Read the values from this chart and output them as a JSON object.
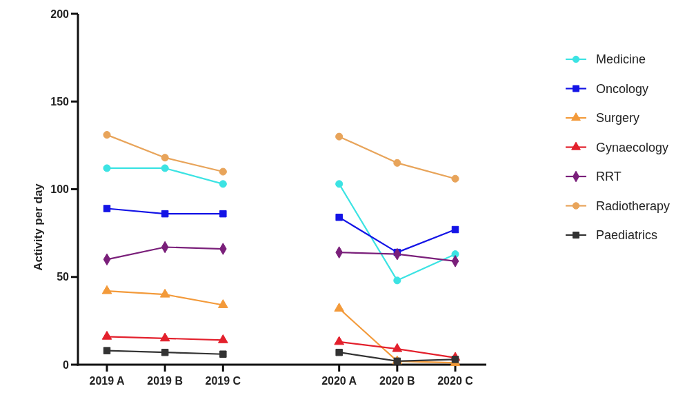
{
  "chart_data": {
    "type": "line",
    "ylabel": "Activity per day",
    "categories": [
      "2019 A",
      "2019 B",
      "2019 C",
      null,
      "2020 A",
      "2020 B",
      "2020 C"
    ],
    "ylim": [
      0,
      200
    ],
    "yticks": [
      0,
      50,
      100,
      150,
      200
    ],
    "legend": "right",
    "series": [
      {
        "name": "Medicine",
        "color": "#3ce3e3",
        "marker": "circle",
        "values": [
          112,
          112,
          103,
          null,
          103,
          48,
          63
        ]
      },
      {
        "name": "Oncology",
        "color": "#1414e6",
        "marker": "square",
        "values": [
          89,
          86,
          86,
          null,
          84,
          64,
          77
        ]
      },
      {
        "name": "Surgery",
        "color": "#f39a3a",
        "marker": "triangle",
        "values": [
          42,
          40,
          34,
          null,
          32,
          2,
          1
        ]
      },
      {
        "name": "Gynaecology",
        "color": "#e3202c",
        "marker": "triangle",
        "values": [
          16,
          15,
          14,
          null,
          13,
          9,
          4
        ]
      },
      {
        "name": "RRT",
        "color": "#7a1f7a",
        "marker": "diamond",
        "values": [
          60,
          67,
          66,
          null,
          64,
          63,
          59
        ]
      },
      {
        "name": "Radiotherapy",
        "color": "#e8a45a",
        "marker": "circle",
        "values": [
          131,
          118,
          110,
          null,
          130,
          115,
          106
        ]
      },
      {
        "name": "Paediatrics",
        "color": "#333333",
        "marker": "square",
        "values": [
          8,
          7,
          6,
          null,
          7,
          2,
          3
        ]
      }
    ]
  }
}
